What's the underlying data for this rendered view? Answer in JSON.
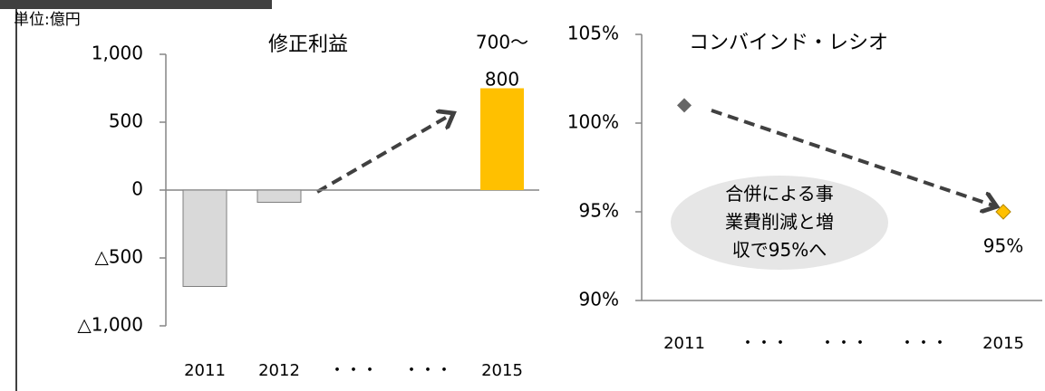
{
  "chart_data": [
    {
      "type": "bar",
      "title": "修正利益",
      "unit": "単位:億円",
      "categories": [
        "2011",
        "2012",
        "・・・",
        "・・・",
        "2015"
      ],
      "values": [
        -710,
        -90,
        null,
        null,
        750
      ],
      "value_labels": [
        null,
        null,
        null,
        null,
        "700〜800"
      ],
      "colors": [
        "#d9d9d9",
        "#d9d9d9",
        null,
        null,
        "#ffc000"
      ],
      "ylim": [
        -1000,
        1000
      ],
      "yticks": [
        {
          "value": -1000,
          "label": "△1,000"
        },
        {
          "value": -500,
          "label": "△500"
        },
        0,
        500,
        {
          "value": 1000,
          "label": "1,000"
        }
      ]
    },
    {
      "type": "line",
      "title": "コンバインド・レシオ",
      "categories": [
        "2011",
        "・・・",
        "・・・",
        "・・・",
        "2015"
      ],
      "values": [
        101,
        null,
        null,
        null,
        95
      ],
      "value_labels": [
        null,
        null,
        null,
        null,
        "95%"
      ],
      "colors": [
        "#666666",
        null,
        null,
        null,
        "#ffc000"
      ],
      "ylim": [
        90,
        105
      ],
      "yticks": [
        {
          "value": 90,
          "label": "90%"
        },
        {
          "value": 95,
          "label": "95%"
        },
        {
          "value": 100,
          "label": "100%"
        },
        {
          "value": 105,
          "label": "105%"
        }
      ],
      "annotation": "合併による事業費削減と増収で95%へ"
    }
  ]
}
